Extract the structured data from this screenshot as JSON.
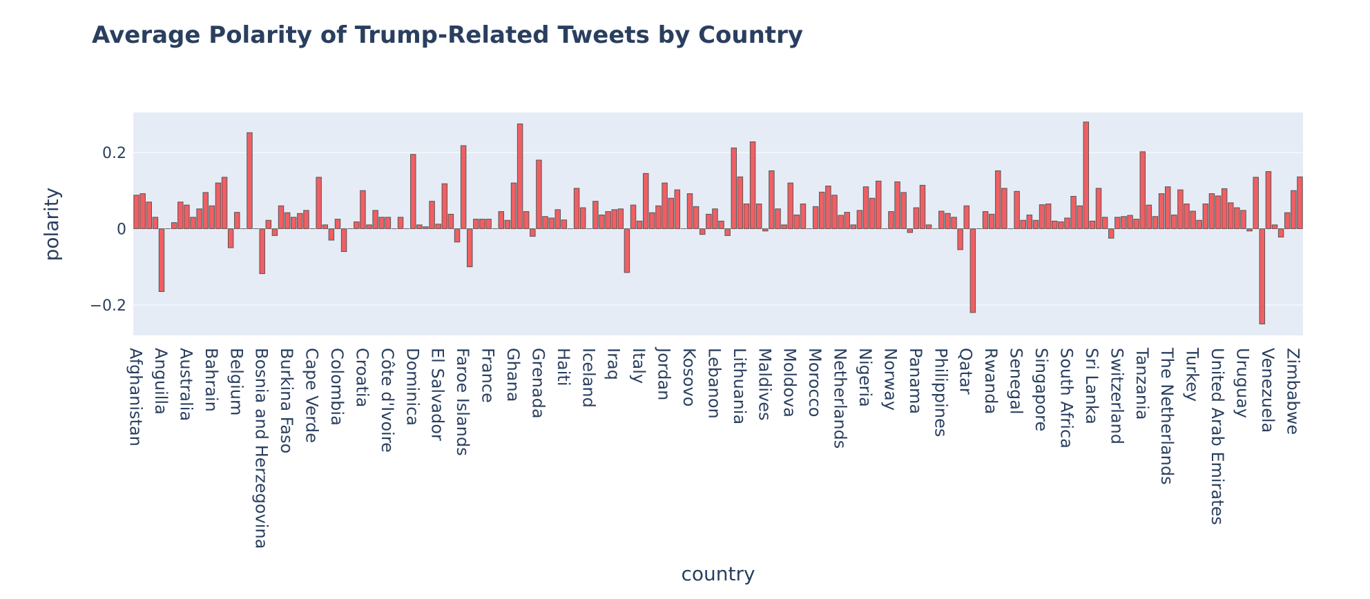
{
  "chart_data": {
    "type": "bar",
    "title": "Average Polarity of Trump-Related Tweets by Country",
    "xlabel": "country",
    "ylabel": "polarity",
    "ylim": [
      -0.28,
      0.305
    ],
    "yticks": [
      {
        "value": 0.2,
        "label": "0.2"
      },
      {
        "value": 0,
        "label": "0"
      },
      {
        "value": -0.2,
        "label": "−0.2"
      }
    ],
    "grid": true,
    "tick_labels": [
      "Afghanistan",
      "Anguilla",
      "Australia",
      "Bahrain",
      "Belgium",
      "Bosnia and Herzegovina",
      "Burkina Faso",
      "Cape Verde",
      "Colombia",
      "Croatia",
      "Côte d'Ivoire",
      "Dominica",
      "El Salvador",
      "Faroe Islands",
      "France",
      "Ghana",
      "Grenada",
      "Haiti",
      "Iceland",
      "Iraq",
      "Italy",
      "Jordan",
      "Kosovo",
      "Lebanon",
      "Lithuania",
      "Maldives",
      "Moldova",
      "Morocco",
      "Netherlands",
      "Nigeria",
      "Norway",
      "Panama",
      "Philippines",
      "Qatar",
      "Rwanda",
      "Senegal",
      "Singapore",
      "South Africa",
      "Sri Lanka",
      "Switzerland",
      "Tanzania",
      "The Netherlands",
      "Turkey",
      "United Arab Emirates",
      "Uruguay",
      "Venezuela",
      "Zimbabwe"
    ],
    "labeled_every": 4,
    "values": [
      0.088,
      0.092,
      0.07,
      0.03,
      -0.165,
      0.0,
      0.016,
      0.07,
      0.062,
      0.03,
      0.052,
      0.095,
      0.06,
      0.12,
      0.135,
      -0.05,
      0.043,
      0.0,
      0.252,
      0.0,
      -0.118,
      0.022,
      -0.018,
      0.06,
      0.042,
      0.03,
      0.04,
      0.048,
      0.0,
      0.135,
      0.01,
      -0.03,
      0.025,
      -0.06,
      0.0,
      0.018,
      0.1,
      0.01,
      0.048,
      0.03,
      0.03,
      0.0,
      0.03,
      0.0,
      0.195,
      0.01,
      0.005,
      0.072,
      0.012,
      0.118,
      0.038,
      -0.035,
      0.218,
      -0.1,
      0.025,
      0.025,
      0.025,
      0.0,
      0.045,
      0.022,
      0.12,
      0.275,
      0.045,
      -0.02,
      0.18,
      0.032,
      0.028,
      0.05,
      0.023,
      0.0,
      0.106,
      0.055,
      0.0,
      0.072,
      0.036,
      0.045,
      0.05,
      0.052,
      -0.115,
      0.062,
      0.02,
      0.145,
      0.042,
      0.06,
      0.12,
      0.08,
      0.102,
      0.0,
      0.092,
      0.058,
      -0.015,
      0.038,
      0.052,
      0.02,
      -0.018,
      0.212,
      0.136,
      0.065,
      0.228,
      0.065,
      -0.006,
      0.152,
      0.052,
      0.01,
      0.12,
      0.036,
      0.065,
      0.0,
      0.058,
      0.096,
      0.112,
      0.088,
      0.035,
      0.043,
      0.01,
      0.048,
      0.11,
      0.08,
      0.125,
      0.0,
      0.045,
      0.123,
      0.095,
      -0.01,
      0.055,
      0.114,
      0.01,
      0.0,
      0.046,
      0.04,
      0.03,
      -0.055,
      0.06,
      -0.22,
      0.0,
      0.045,
      0.038,
      0.152,
      0.106,
      0.0,
      0.098,
      0.022,
      0.036,
      0.022,
      0.063,
      0.065,
      0.02,
      0.018,
      0.028,
      0.085,
      0.06,
      0.28,
      0.02,
      0.106,
      0.03,
      -0.025,
      0.03,
      0.032,
      0.035,
      0.025,
      0.202,
      0.062,
      0.032,
      0.092,
      0.11,
      0.036,
      0.102,
      0.065,
      0.046,
      0.022,
      0.065,
      0.092,
      0.086,
      0.105,
      0.068,
      0.055,
      0.048,
      -0.006,
      0.135,
      -0.25,
      0.15,
      0.01,
      -0.022,
      0.042,
      0.1,
      0.136
    ]
  },
  "colors": {
    "bar_fill": "#ef5f63",
    "bar_outline": "#555555",
    "plot_bg": "#e5ecf6",
    "grid": "#ffffff",
    "text": "#2a3f5f"
  }
}
